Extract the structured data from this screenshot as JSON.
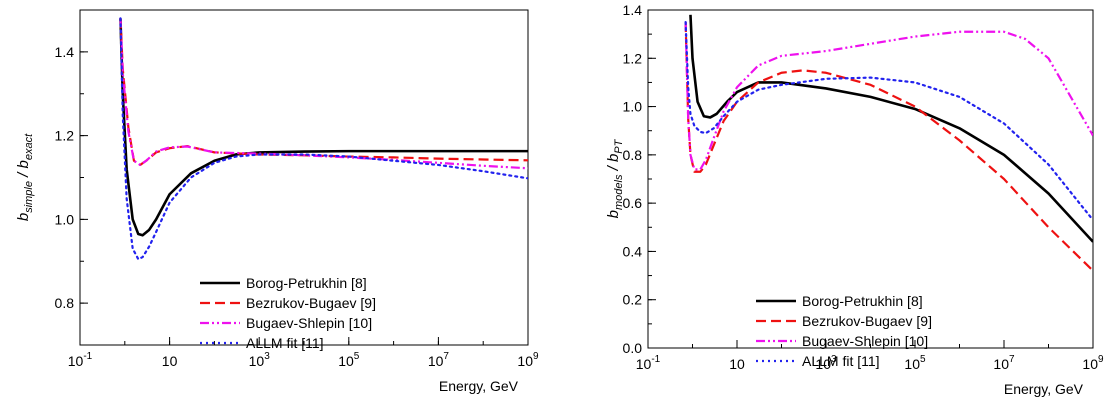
{
  "chart_data": [
    {
      "type": "line",
      "xscale": "log",
      "xlim": [
        0.1,
        1000000000
      ],
      "ylim": [
        0.7,
        1.5
      ],
      "xlabel": "Energy, GeV",
      "ylabel": "b",
      "ylabel_sub1": "simple",
      "ylabel_mid": " / b",
      "ylabel_sub2": "exact",
      "xticks": [
        {
          "base": "10",
          "exp": "-1",
          "value": 0.1
        },
        {
          "base": "10",
          "exp": "",
          "value": 10
        },
        {
          "base": "10",
          "exp": "3",
          "value": 1000
        },
        {
          "base": "10",
          "exp": "5",
          "value": 100000
        },
        {
          "base": "10",
          "exp": "7",
          "value": 10000000
        },
        {
          "base": "10",
          "exp": "9",
          "value": 1000000000
        }
      ],
      "yticks": [
        {
          "label": "0.8",
          "value": 0.8
        },
        {
          "label": "1.0",
          "value": 1.0
        },
        {
          "label": "1.2",
          "value": 1.2
        },
        {
          "label": "1.4",
          "value": 1.4
        }
      ],
      "legend_position": "bottom-right",
      "series": [
        {
          "name": "Borog-Petrukhin [8]",
          "color": "#000000",
          "dash": "solid",
          "x": [
            0.8,
            0.9,
            1.1,
            1.5,
            2.0,
            2.5,
            3.5,
            5,
            10,
            30,
            100,
            300,
            1000,
            10000,
            100000,
            1000000,
            10000000,
            100000000,
            1000000000
          ],
          "y": [
            1.48,
            1.3,
            1.12,
            1.0,
            0.965,
            0.962,
            0.975,
            1.0,
            1.06,
            1.11,
            1.14,
            1.155,
            1.16,
            1.162,
            1.163,
            1.163,
            1.163,
            1.163,
            1.163
          ]
        },
        {
          "name": "Bezrukov-Bugaev [9]",
          "color": "#ee1111",
          "dash": "dashed",
          "x": [
            0.8,
            0.9,
            1.2,
            1.6,
            2.2,
            3,
            5,
            10,
            25,
            100,
            1000,
            10000,
            100000,
            1000000,
            10000000,
            100000000,
            1000000000
          ],
          "y": [
            1.48,
            1.36,
            1.22,
            1.14,
            1.13,
            1.14,
            1.16,
            1.17,
            1.175,
            1.16,
            1.155,
            1.153,
            1.15,
            1.148,
            1.145,
            1.143,
            1.141
          ]
        },
        {
          "name": "Bugaev-Shlepin [10]",
          "color": "#ee11ee",
          "dash": "dashdotdot",
          "x": [
            0.8,
            0.9,
            1.2,
            1.6,
            2.2,
            3,
            5,
            10,
            25,
            100,
            1000,
            10000,
            100000,
            1000000,
            10000000,
            100000000,
            1000000000
          ],
          "y": [
            1.48,
            1.35,
            1.21,
            1.14,
            1.13,
            1.14,
            1.162,
            1.172,
            1.174,
            1.16,
            1.157,
            1.153,
            1.148,
            1.142,
            1.135,
            1.128,
            1.122
          ]
        },
        {
          "name": "ALLM fit [11]",
          "color": "#2222ee",
          "dash": "dotted",
          "x": [
            0.8,
            0.9,
            1.1,
            1.5,
            2.0,
            2.5,
            3.5,
            5,
            10,
            30,
            100,
            300,
            1000,
            10000,
            100000,
            1000000,
            10000000,
            100000000,
            1000000000
          ],
          "y": [
            1.48,
            1.25,
            1.05,
            0.93,
            0.905,
            0.91,
            0.935,
            0.97,
            1.04,
            1.1,
            1.135,
            1.15,
            1.155,
            1.155,
            1.15,
            1.14,
            1.13,
            1.115,
            1.098
          ]
        }
      ]
    },
    {
      "type": "line",
      "xscale": "log",
      "xlim": [
        0.1,
        1000000000
      ],
      "ylim": [
        0.0,
        1.4
      ],
      "xlabel": "Energy, GeV",
      "ylabel": "b",
      "ylabel_sub1": "models",
      "ylabel_mid": " / b",
      "ylabel_sub2": "PT",
      "xticks": [
        {
          "base": "10",
          "exp": "-1",
          "value": 0.1
        },
        {
          "base": "10",
          "exp": "",
          "value": 10
        },
        {
          "base": "10",
          "exp": "3",
          "value": 1000
        },
        {
          "base": "10",
          "exp": "5",
          "value": 100000
        },
        {
          "base": "10",
          "exp": "7",
          "value": 10000000
        },
        {
          "base": "10",
          "exp": "9",
          "value": 1000000000
        }
      ],
      "yticks": [
        {
          "label": "0.0",
          "value": 0.0
        },
        {
          "label": "0.2",
          "value": 0.2
        },
        {
          "label": "0.4",
          "value": 0.4
        },
        {
          "label": "0.6",
          "value": 0.6
        },
        {
          "label": "0.8",
          "value": 0.8
        },
        {
          "label": "1.0",
          "value": 1.0
        },
        {
          "label": "1.2",
          "value": 1.2
        },
        {
          "label": "1.4",
          "value": 1.4
        }
      ],
      "legend_position": "bottom-center",
      "series": [
        {
          "name": "Borog-Petrukhin [8]",
          "color": "#000000",
          "dash": "solid",
          "x": [
            0.9,
            1.0,
            1.3,
            1.8,
            2.5,
            3.5,
            6,
            10,
            30,
            100,
            1000,
            10000,
            100000,
            1000000,
            10000000,
            100000000,
            1000000000
          ],
          "y": [
            1.38,
            1.2,
            1.02,
            0.96,
            0.955,
            0.97,
            1.02,
            1.06,
            1.1,
            1.1,
            1.075,
            1.04,
            0.99,
            0.91,
            0.8,
            0.64,
            0.44
          ]
        },
        {
          "name": "Bezrukov-Bugaev [9]",
          "color": "#ee1111",
          "dash": "dashed",
          "x": [
            0.7,
            0.8,
            0.9,
            1.1,
            1.5,
            2,
            3,
            5,
            10,
            30,
            100,
            300,
            1000,
            10000,
            100000,
            1000000,
            10000000,
            100000000,
            1000000000
          ],
          "y": [
            1.35,
            0.95,
            0.8,
            0.73,
            0.73,
            0.76,
            0.84,
            0.94,
            1.02,
            1.1,
            1.14,
            1.15,
            1.14,
            1.09,
            1.0,
            0.86,
            0.7,
            0.5,
            0.32
          ]
        },
        {
          "name": "Bugaev-Shlepin [10]",
          "color": "#ee11ee",
          "dash": "dashdotdot",
          "x": [
            0.7,
            0.8,
            0.9,
            1.1,
            1.5,
            2,
            3,
            5,
            10,
            30,
            100,
            1000,
            10000,
            100000,
            1000000,
            10000000,
            30000000,
            100000000,
            1000000000
          ],
          "y": [
            1.35,
            0.95,
            0.8,
            0.74,
            0.74,
            0.78,
            0.87,
            0.98,
            1.08,
            1.17,
            1.21,
            1.23,
            1.26,
            1.29,
            1.31,
            1.31,
            1.28,
            1.2,
            0.88
          ]
        },
        {
          "name": "ALLM fit [11]",
          "color": "#2222ee",
          "dash": "dotted",
          "x": [
            0.7,
            0.8,
            0.9,
            1.1,
            1.5,
            2,
            3,
            5,
            10,
            30,
            100,
            1000,
            10000,
            100000,
            1000000,
            10000000,
            100000000,
            1000000000
          ],
          "y": [
            1.35,
            1.08,
            0.97,
            0.92,
            0.895,
            0.89,
            0.91,
            0.96,
            1.02,
            1.07,
            1.09,
            1.115,
            1.12,
            1.1,
            1.04,
            0.93,
            0.76,
            0.53
          ]
        }
      ]
    }
  ]
}
